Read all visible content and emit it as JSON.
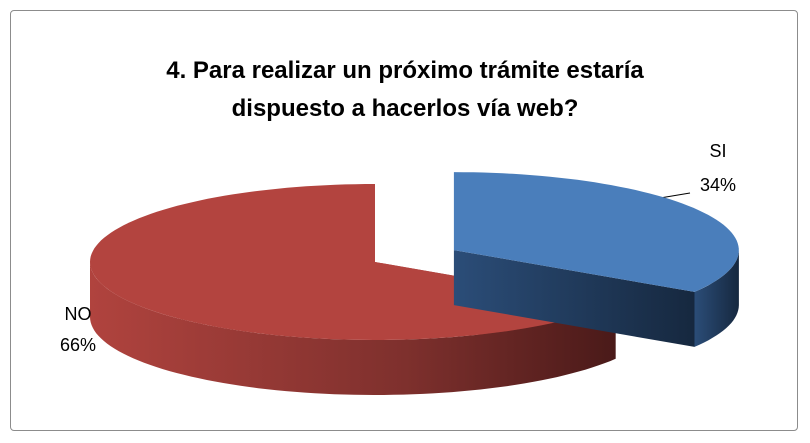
{
  "chart_data": {
    "type": "pie3d",
    "title": "4. Para realizar un próximo trámite estaría dispuesto a hacerlos vía web?",
    "categories": [
      "SI",
      "NO"
    ],
    "values": [
      34,
      66
    ],
    "value_labels": [
      "34%",
      "66%"
    ],
    "colors": [
      "#4a7ebb",
      "#b3443f"
    ]
  }
}
